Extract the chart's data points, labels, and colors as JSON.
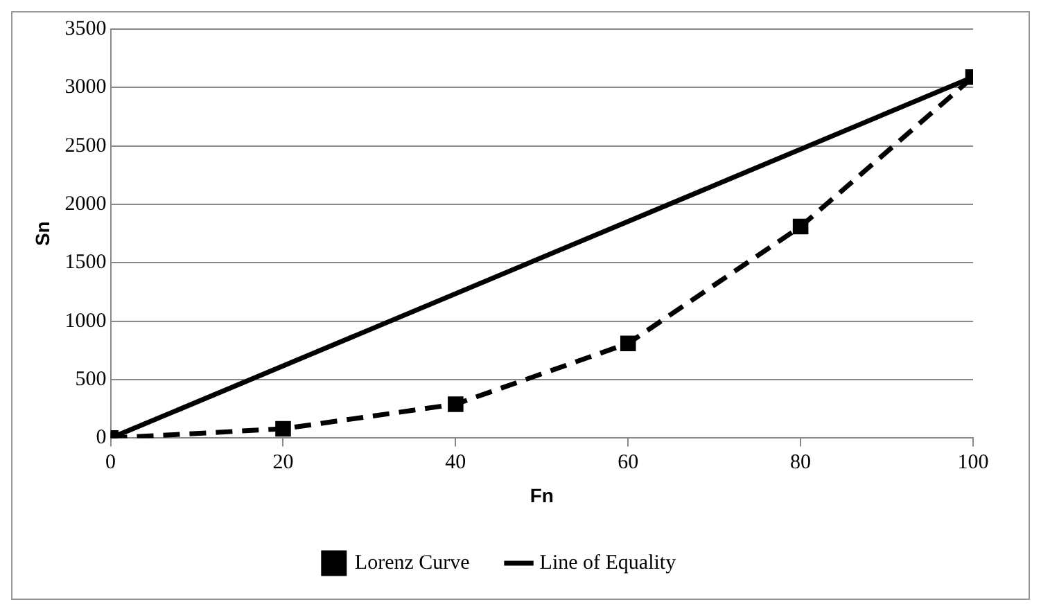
{
  "chart_data": {
    "type": "line",
    "xlabel": "Fn",
    "ylabel": "Sn",
    "x": [
      0,
      20,
      40,
      60,
      80,
      100
    ],
    "series": [
      {
        "name": "Lorenz Curve",
        "color": "#000000",
        "values": [
          0,
          80,
          290,
          810,
          1810,
          3090
        ],
        "marker": "square",
        "line_style": "dashed"
      },
      {
        "name": "Line of Equality",
        "color": "#000000",
        "x": [
          0,
          100
        ],
        "values": [
          0,
          3090
        ],
        "marker": "none",
        "line_style": "solid"
      }
    ],
    "xlim": [
      0,
      100
    ],
    "xticks": [
      0,
      20,
      40,
      60,
      80,
      100
    ],
    "ylim": [
      0,
      3500
    ],
    "yticks": [
      0,
      500,
      1000,
      1500,
      2000,
      2500,
      3000,
      3500
    ],
    "grid": "y",
    "legend": "bottom"
  }
}
